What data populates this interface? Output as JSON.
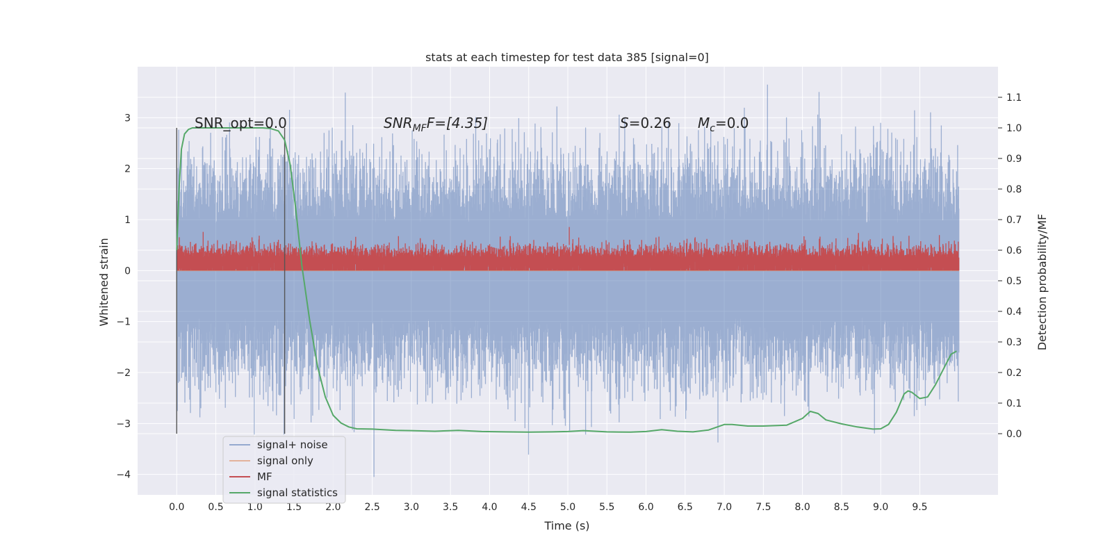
{
  "chart_data": {
    "type": "line",
    "title": "stats at each timestep for test data 385 [signal=0]",
    "xlabel": "Time (s)",
    "ylabel_left": "Whitened strain",
    "ylabel_right": "Detection probability/MF",
    "xlim": [
      -0.5,
      10.5
    ],
    "ylim_left": [
      -4.4,
      4.0
    ],
    "ylim_right": [
      -0.2,
      1.2
    ],
    "x_ticks": [
      "0.0",
      "0.5",
      "1.0",
      "1.5",
      "2.0",
      "2.5",
      "3.0",
      "3.5",
      "4.0",
      "4.5",
      "5.0",
      "5.5",
      "6.0",
      "6.5",
      "7.0",
      "7.5",
      "8.0",
      "8.5",
      "9.0",
      "9.5"
    ],
    "y_ticks_left": [
      "3",
      "2",
      "1",
      "0",
      "−1",
      "−2",
      "−3",
      "−4"
    ],
    "y_ticks_right": [
      "1.1",
      "1.0",
      "0.9",
      "0.8",
      "0.7",
      "0.6",
      "0.5",
      "0.4",
      "0.3",
      "0.2",
      "0.1",
      "0.0"
    ],
    "grid": true,
    "legend_position": "lower-left",
    "annotations": {
      "snr_opt": "SNR_opt=0.0",
      "snr_mf_a": "SNR",
      "snr_mf_sub": "MF",
      "snr_mf_b": "F=[4.35]",
      "s_a": "S",
      "s_b": "=0.26",
      "mc_a": "M",
      "mc_sub": "c",
      "mc_b": "=0.0"
    },
    "vertical_markers": [
      0.0,
      1.38
    ],
    "series": [
      {
        "name": "signal+ noise",
        "color": "#4c72b0",
        "axis": "left",
        "description_values": {
          "x_range": [
            0.0,
            10.0
          ],
          "typical_band": [
            -1.5,
            1.5
          ],
          "max": 3.65,
          "min": -4.05
        }
      },
      {
        "name": "signal only",
        "color": "#dd8452",
        "axis": "left",
        "x": [
          0.0,
          10.0
        ],
        "y": [
          0.0,
          0.0
        ]
      },
      {
        "name": "MF",
        "color": "#c44e52",
        "axis": "left",
        "description_values": {
          "x_range": [
            0.0,
            10.0
          ],
          "typical_band": [
            0.0,
            0.6
          ],
          "max": 1.0
        }
      },
      {
        "name": "signal statistics",
        "color": "#55a868",
        "axis": "right",
        "x": [
          0.0,
          0.03,
          0.06,
          0.1,
          0.15,
          0.2,
          0.3,
          0.5,
          0.8,
          1.0,
          1.1,
          1.2,
          1.3,
          1.38,
          1.45,
          1.52,
          1.6,
          1.7,
          1.8,
          1.9,
          2.0,
          2.1,
          2.2,
          2.3,
          2.5,
          2.8,
          3.0,
          3.3,
          3.6,
          3.9,
          4.2,
          4.5,
          4.8,
          5.0,
          5.2,
          5.5,
          5.8,
          6.0,
          6.2,
          6.4,
          6.6,
          6.8,
          7.0,
          7.1,
          7.3,
          7.5,
          7.8,
          8.0,
          8.1,
          8.2,
          8.3,
          8.5,
          8.7,
          8.9,
          9.0,
          9.1,
          9.2,
          9.3,
          9.35,
          9.4,
          9.45,
          9.5,
          9.6,
          9.7,
          9.8,
          9.9,
          9.97
        ],
        "y": [
          0.6,
          0.8,
          0.93,
          0.98,
          0.995,
          1.0,
          1.0,
          1.0,
          1.0,
          1.0,
          1.0,
          0.998,
          0.99,
          0.96,
          0.88,
          0.74,
          0.55,
          0.37,
          0.22,
          0.12,
          0.06,
          0.035,
          0.022,
          0.016,
          0.015,
          0.011,
          0.01,
          0.008,
          0.011,
          0.007,
          0.006,
          0.005,
          0.006,
          0.007,
          0.01,
          0.006,
          0.005,
          0.007,
          0.013,
          0.008,
          0.006,
          0.012,
          0.03,
          0.03,
          0.025,
          0.025,
          0.028,
          0.05,
          0.073,
          0.066,
          0.045,
          0.032,
          0.022,
          0.015,
          0.016,
          0.03,
          0.07,
          0.13,
          0.14,
          0.135,
          0.125,
          0.115,
          0.12,
          0.16,
          0.21,
          0.26,
          0.27
        ]
      }
    ]
  }
}
